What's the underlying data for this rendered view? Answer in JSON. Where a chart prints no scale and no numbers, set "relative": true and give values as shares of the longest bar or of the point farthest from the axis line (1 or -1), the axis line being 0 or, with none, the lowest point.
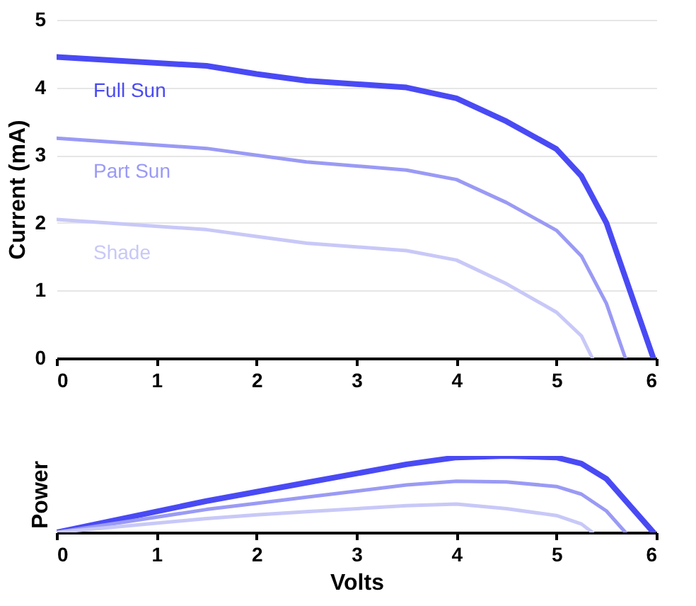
{
  "chart_data": [
    {
      "type": "line",
      "ylabel": "Current (mA)",
      "xlim": [
        0,
        6
      ],
      "xticks": [
        0,
        1,
        2,
        3,
        4,
        5,
        6
      ],
      "ylim": [
        0,
        5
      ],
      "yticks": [
        0,
        1,
        2,
        3,
        4,
        5
      ],
      "grid": "y",
      "marker": "none",
      "line_style": "solid",
      "series": [
        {
          "name": "Full Sun",
          "color": "#4a4af5",
          "x": [
            0,
            1.5,
            2,
            2.5,
            3.5,
            4,
            4.5,
            5,
            5.25,
            5.5,
            5.97
          ],
          "values": [
            4.45,
            4.32,
            4.2,
            4.1,
            4.0,
            3.84,
            3.5,
            3.09,
            2.69,
            2.0,
            0
          ]
        },
        {
          "name": "Part Sun",
          "color": "#9a9af5",
          "x": [
            0,
            1.5,
            2,
            2.5,
            3.5,
            4,
            4.5,
            5,
            5.25,
            5.5,
            5.69
          ],
          "values": [
            3.25,
            3.1,
            3.0,
            2.9,
            2.78,
            2.64,
            2.3,
            1.89,
            1.51,
            0.81,
            0
          ]
        },
        {
          "name": "Shade",
          "color": "#c8c8f8",
          "x": [
            0,
            1.5,
            2,
            2.5,
            3.5,
            4,
            4.5,
            5,
            5.25,
            5.36
          ],
          "values": [
            2.05,
            1.9,
            1.8,
            1.7,
            1.59,
            1.45,
            1.1,
            0.68,
            0.33,
            0
          ]
        }
      ]
    },
    {
      "type": "line",
      "xlabel": "Volts",
      "ylabel": "Power",
      "relative": true,
      "xlim": [
        0,
        6
      ],
      "xticks": [
        0,
        1,
        2,
        3,
        4,
        5,
        6
      ],
      "marker": "none",
      "line_style": "solid",
      "series": [
        {
          "color": "#4a4af5",
          "x": [
            0,
            1.5,
            2,
            2.5,
            3.5,
            4,
            4.5,
            5,
            5.25,
            5.5,
            5.97
          ],
          "values": [
            0,
            0.41,
            0.53,
            0.65,
            0.89,
            0.98,
            1.0,
            0.98,
            0.9,
            0.7,
            0
          ]
        },
        {
          "color": "#9a9af5",
          "x": [
            0,
            1.5,
            2,
            2.5,
            3.5,
            4,
            4.5,
            5,
            5.25,
            5.5,
            5.69
          ],
          "values": [
            0,
            0.3,
            0.38,
            0.46,
            0.62,
            0.67,
            0.66,
            0.6,
            0.5,
            0.28,
            0
          ]
        },
        {
          "color": "#c8c8f8",
          "x": [
            0,
            1.5,
            2,
            2.5,
            3.5,
            4,
            4.5,
            5,
            5.25,
            5.36
          ],
          "values": [
            0,
            0.18,
            0.23,
            0.27,
            0.35,
            0.37,
            0.31,
            0.22,
            0.11,
            0
          ]
        }
      ]
    }
  ]
}
